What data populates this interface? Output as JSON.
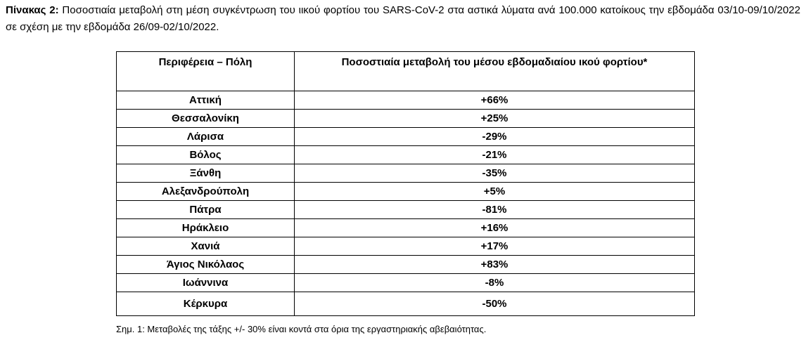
{
  "caption": {
    "label": "Πίνακας 2:",
    "text": "Ποσοστιαία μεταβολή στη μέση συγκέντρωση του ιικού φορτίου του SARS-CoV-2 στα αστικά λύματα ανά 100.000 κατοίκους την εβδομάδα 03/10-09/10/2022 σε σχέση με την εβδομάδα 26/09-02/10/2022."
  },
  "table": {
    "header": [
      "Περιφέρεια – Πόλη",
      "Ποσοστιαία μεταβολή του μέσου εβδομαδιαίου ικού φορτίου*"
    ],
    "rows": [
      [
        "Αττική",
        "+66%"
      ],
      [
        "Θεσσαλονίκη",
        "+25%"
      ],
      [
        "Λάρισα",
        "-29%"
      ],
      [
        "Βόλος",
        "-21%"
      ],
      [
        "Ξάνθη",
        "-35%"
      ],
      [
        "Αλεξανδρούπολη",
        "+5%"
      ],
      [
        "Πάτρα",
        "-81%"
      ],
      [
        "Ηράκλειο",
        "+16%"
      ],
      [
        "Χανιά",
        "+17%"
      ],
      [
        "Άγιος Νικόλαος",
        "+83%"
      ],
      [
        "Ιωάννινα",
        "-8%"
      ],
      [
        "Κέρκυρα",
        "-50%"
      ]
    ]
  },
  "note": "Σημ. 1: Μεταβολές της τάξης +/- 30% είναι κοντά στα όρια της εργαστηριακής αβεβαιότητας."
}
